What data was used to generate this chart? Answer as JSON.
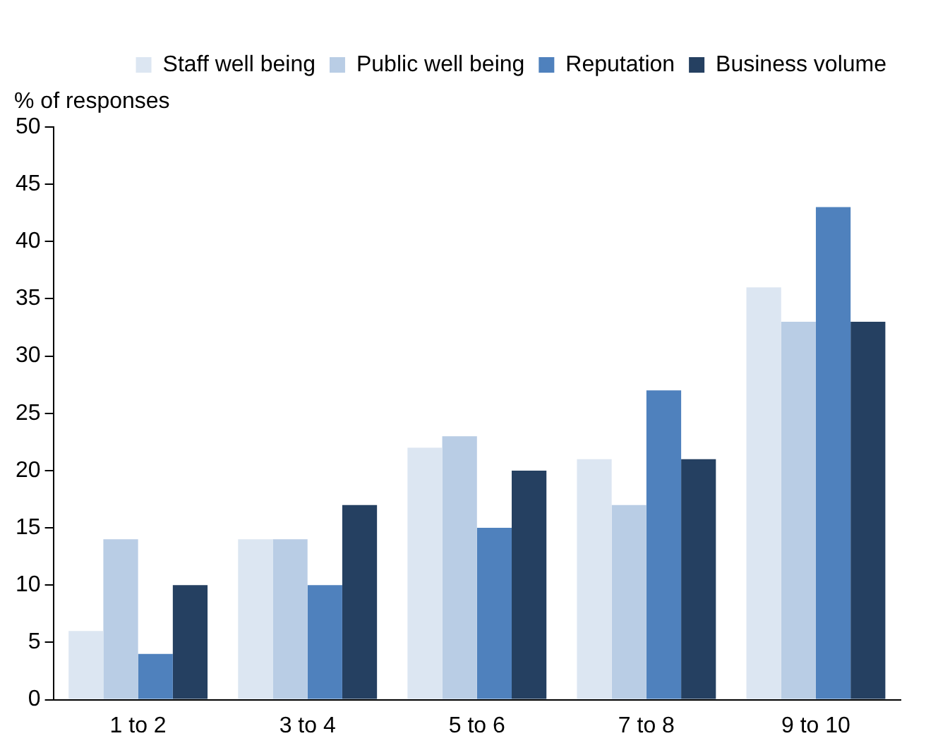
{
  "chart_data": {
    "type": "bar",
    "ylabel": "% of responses",
    "categories": [
      "1 to 2",
      "3 to 4",
      "5 to 6",
      "7 to 8",
      "9 to 10"
    ],
    "series": [
      {
        "name": "Staff well being",
        "color": "#dce6f2",
        "values": [
          6,
          14,
          22,
          21,
          36
        ]
      },
      {
        "name": "Public well being",
        "color": "#b9cde5",
        "values": [
          14,
          14,
          23,
          17,
          33
        ]
      },
      {
        "name": "Reputation",
        "color": "#4f81bd",
        "values": [
          4,
          10,
          15,
          27,
          43
        ]
      },
      {
        "name": "Business volume",
        "color": "#254061",
        "values": [
          10,
          17,
          20,
          21,
          33
        ]
      }
    ],
    "ylim": [
      0,
      50
    ],
    "yticks": [
      0,
      5,
      10,
      15,
      20,
      25,
      30,
      35,
      40,
      45,
      50
    ],
    "grid": false,
    "legend": "top right"
  }
}
